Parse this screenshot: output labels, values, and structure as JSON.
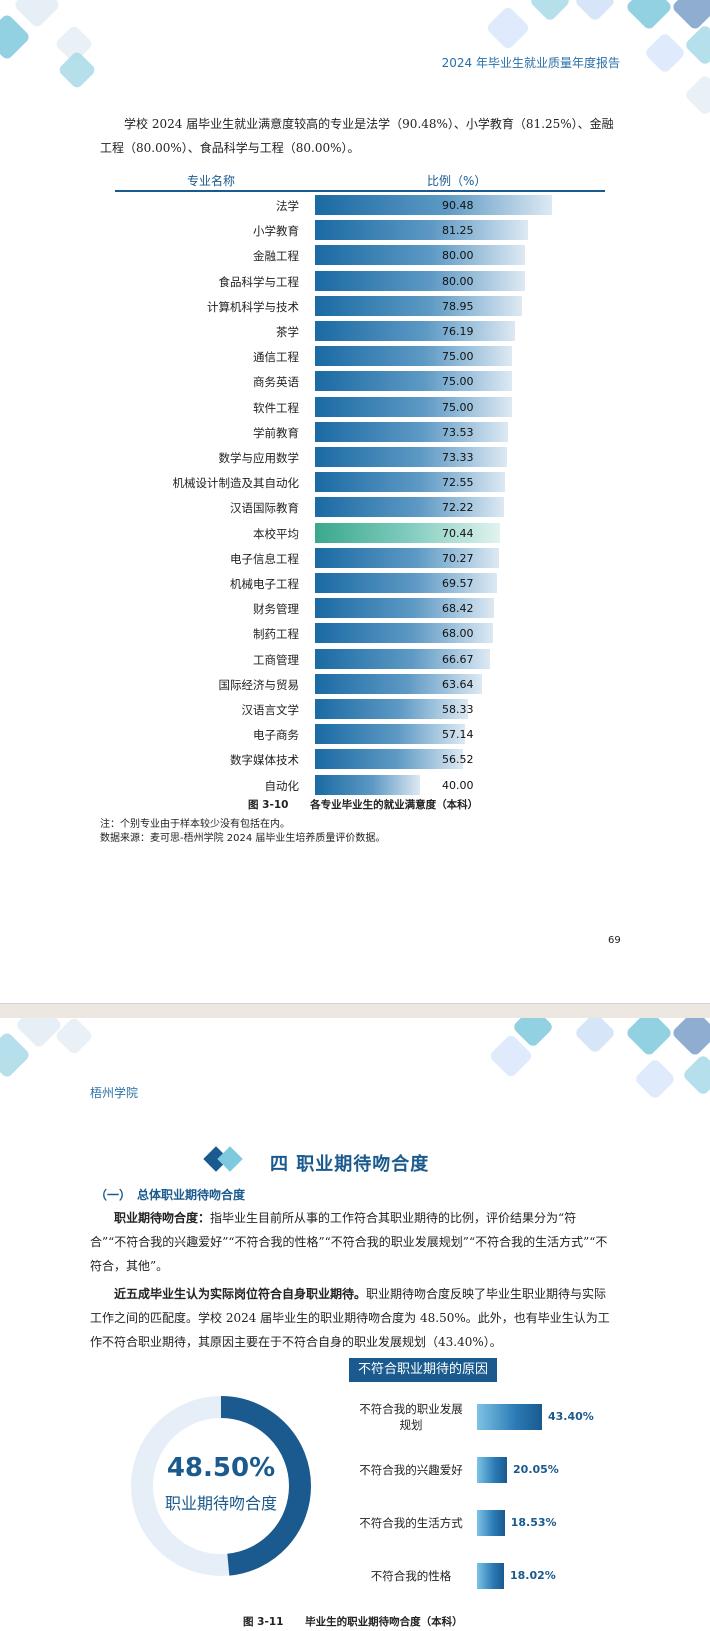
{
  "page1": {
    "header": "2024 年毕业生就业质量年度报告",
    "intro": "学校 2024 届毕业生就业满意度较高的专业是法学（90.48%）、小学教育（81.25%）、金融工程（80.00%）、食品科学与工程（80.00%）。",
    "chart_data": {
      "type": "bar",
      "col_name_header": "专业名称",
      "col_value_header": "比例（%）",
      "categories": [
        "法学",
        "小学教育",
        "金融工程",
        "食品科学与工程",
        "计算机科学与技术",
        "茶学",
        "通信工程",
        "商务英语",
        "软件工程",
        "学前教育",
        "数学与应用数学",
        "机械设计制造及其自动化",
        "汉语国际教育",
        "本校平均",
        "电子信息工程",
        "机械电子工程",
        "财务管理",
        "制药工程",
        "工商管理",
        "国际经济与贸易",
        "汉语言文学",
        "电子商务",
        "数字媒体技术",
        "自动化"
      ],
      "values": [
        90.48,
        81.25,
        80.0,
        80.0,
        78.95,
        76.19,
        75.0,
        75.0,
        75.0,
        73.53,
        73.33,
        72.55,
        72.22,
        70.44,
        70.27,
        69.57,
        68.42,
        68.0,
        66.67,
        63.64,
        58.33,
        57.14,
        56.52,
        40.0
      ],
      "value_labels": [
        "90.48",
        "81.25",
        "80.00",
        "80.00",
        "78.95",
        "76.19",
        "75.00",
        "75.00",
        "75.00",
        "73.53",
        "73.33",
        "72.55",
        "72.22",
        "70.44",
        "70.27",
        "69.57",
        "68.42",
        "68.00",
        "66.67",
        "63.64",
        "58.33",
        "57.14",
        "56.52",
        "40.00"
      ],
      "highlight_category": "本校平均",
      "colors": {
        "bar": "#1a6aa3",
        "highlight": "#3aa88c"
      }
    },
    "caption_num": "图 3-10",
    "caption_text": "各专业毕业生的就业满意度（本科）",
    "note1": "注：个别专业由于样本较少没有包括在内。",
    "note2": "数据来源：麦可思-梧州学院 2024 届毕业生培养质量评价数据。",
    "page_number": "69"
  },
  "page2": {
    "header": "梧州学院",
    "section_title": "四 职业期待吻合度",
    "subsection": "（一）　总体职业期待吻合度",
    "para1_bold": "职业期待吻合度：",
    "para1_text": "指毕业生目前所从事的工作符合其职业期待的比例，评价结果分为“符合”“不符合我的兴趣爱好”“不符合我的性格”“不符合我的职业发展规划”“不符合我的生活方式”“不符合，其他”。",
    "para2_bold": "近五成毕业生认为实际岗位符合自身职业期待。",
    "para2_text": "职业期待吻合度反映了毕业生职业期待与实际工作之间的匹配度。学校 2024 届毕业生的职业期待吻合度为 48.50%。此外，也有毕业生认为工作不符合职业期待，其原因主要在于不符合自身的职业发展规划（43.40%）。",
    "donut": {
      "value": 48.5,
      "value_label": "48.50%",
      "label": "职业期待吻合度",
      "color": "#1a5a8e",
      "track_color": "#e6eff8"
    },
    "reasons_title": "不符合职业期待的原因",
    "chart_data": {
      "type": "bar",
      "categories": [
        "不符合我的职业发展规划",
        "不符合我的兴趣爱好",
        "不符合我的生活方式",
        "不符合我的性格"
      ],
      "values": [
        43.4,
        20.05,
        18.53,
        18.02
      ],
      "value_labels": [
        "43.40%",
        "20.05%",
        "18.53%",
        "18.02%"
      ]
    },
    "reason_label_lines": [
      [
        "不符合我的职业发展",
        "规划"
      ],
      [
        "不符合我的兴趣爱好"
      ],
      [
        "不符合我的生活方式"
      ],
      [
        "不符合我的性格"
      ]
    ],
    "caption_num": "图 3-11",
    "caption_text": "毕业生的职业期待吻合度（本科）"
  }
}
